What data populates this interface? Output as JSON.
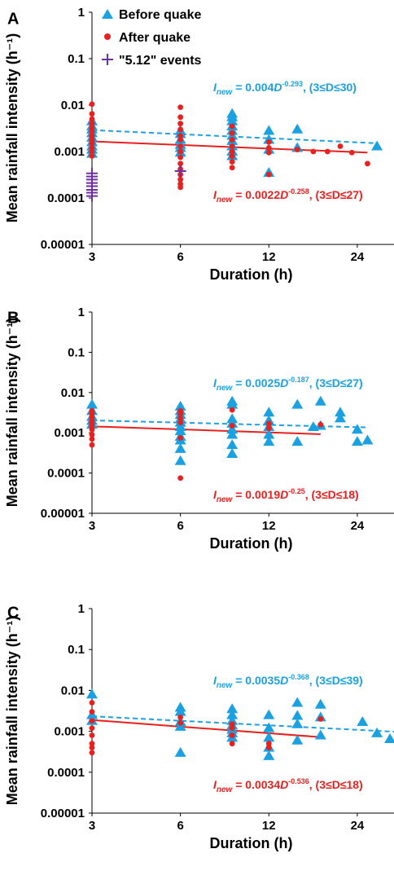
{
  "colors": {
    "before": "#1ba1e2",
    "after": "#e8201e",
    "events512": "#7030a0",
    "axis": "#000000"
  },
  "legend": {
    "before": "Before quake",
    "after": "After quake",
    "events": "\"5.12\" events",
    "placement": "top-left (panel A only)"
  },
  "chart_data": [
    {
      "panel": "A",
      "type": "scatter",
      "x_scale": "log",
      "y_scale": "log",
      "xlabel": "Duration (h)",
      "ylabel": "Mean rainfall intensity (h⁻¹)",
      "x_ticks": [
        3,
        6,
        12,
        24
      ],
      "y_ticks": [
        "1",
        "0.1",
        "0.01",
        "0.001",
        "0.0001",
        "0.00001"
      ],
      "xlim": [
        3,
        32
      ],
      "ylim": [
        1e-05,
        1
      ],
      "grid": false,
      "series": [
        {
          "name": "Before quake",
          "marker": "triangle",
          "points": [
            [
              3,
              0.0045
            ],
            [
              3,
              0.0035
            ],
            [
              3,
              0.003
            ],
            [
              3,
              0.0025
            ],
            [
              3,
              0.002
            ],
            [
              3,
              0.0016
            ],
            [
              3,
              0.0013
            ],
            [
              3,
              0.0011
            ],
            [
              3,
              0.0009
            ],
            [
              6,
              0.0028
            ],
            [
              6,
              0.0024
            ],
            [
              6,
              0.0018
            ],
            [
              6,
              0.0014
            ],
            [
              6,
              0.0012
            ],
            [
              6,
              0.00095
            ],
            [
              9,
              0.0065
            ],
            [
              9,
              0.0055
            ],
            [
              9,
              0.0045
            ],
            [
              9,
              0.0035
            ],
            [
              9,
              0.0028
            ],
            [
              9,
              0.0022
            ],
            [
              9,
              0.0017
            ],
            [
              9,
              0.0013
            ],
            [
              9,
              0.001
            ],
            [
              9,
              0.0008
            ],
            [
              12,
              0.0028
            ],
            [
              12,
              0.0018
            ],
            [
              12,
              0.0011
            ],
            [
              12,
              0.00035
            ],
            [
              15,
              0.003
            ],
            [
              15,
              0.0012
            ],
            [
              28,
              0.0013
            ]
          ]
        },
        {
          "name": "After quake",
          "marker": "circle",
          "points": [
            [
              3,
              0.0105
            ],
            [
              3,
              0.0065
            ],
            [
              3,
              0.005
            ],
            [
              3,
              0.004
            ],
            [
              3,
              0.0032
            ],
            [
              3,
              0.0027
            ],
            [
              3,
              0.0022
            ],
            [
              3,
              0.0018
            ],
            [
              3,
              0.0015
            ],
            [
              3,
              0.0012
            ],
            [
              3,
              0.001
            ],
            [
              3,
              0.0008
            ],
            [
              6,
              0.009
            ],
            [
              6,
              0.0055
            ],
            [
              6,
              0.004
            ],
            [
              6,
              0.003
            ],
            [
              6,
              0.0022
            ],
            [
              6,
              0.0018
            ],
            [
              6,
              0.0013
            ],
            [
              6,
              0.001
            ],
            [
              6,
              0.00075
            ],
            [
              6,
              0.00055
            ],
            [
              6,
              0.00042
            ],
            [
              6,
              0.00032
            ],
            [
              6,
              0.00025
            ],
            [
              6,
              0.0002
            ],
            [
              6,
              0.00017
            ],
            [
              9,
              0.0035
            ],
            [
              9,
              0.0025
            ],
            [
              9,
              0.0018
            ],
            [
              9,
              0.0013
            ],
            [
              9,
              0.001
            ],
            [
              9,
              0.0008
            ],
            [
              9,
              0.0006
            ],
            [
              9,
              0.00045
            ],
            [
              12,
              0.0016
            ],
            [
              12,
              0.0012
            ],
            [
              12,
              0.00095
            ],
            [
              12,
              0.00032
            ],
            [
              15,
              0.0011
            ],
            [
              17,
              0.001
            ],
            [
              19,
              0.001
            ],
            [
              21,
              0.0013
            ],
            [
              23,
              0.00095
            ],
            [
              26,
              0.00055
            ]
          ]
        },
        {
          "name": "\"5.12\" events",
          "marker": "cross",
          "points": [
            [
              3,
              0.00034
            ],
            [
              3,
              0.00029
            ],
            [
              3,
              0.00025
            ],
            [
              3,
              0.00021
            ],
            [
              3,
              0.00018
            ],
            [
              3,
              0.00015
            ],
            [
              3,
              0.00013
            ],
            [
              3,
              0.00011
            ],
            [
              6,
              0.00038
            ]
          ]
        }
      ],
      "fits": [
        {
          "series": "Before quake",
          "a": 0.004,
          "b": -0.293,
          "x_range": [
            3,
            28
          ],
          "style": "dashed",
          "label_coef": "0.004",
          "label_exp": "-0.293",
          "label_range": ", (3≤D≤30)"
        },
        {
          "series": "After quake",
          "a": 0.0022,
          "b": -0.258,
          "x_range": [
            3,
            26
          ],
          "style": "solid",
          "label_coef": "0.0022",
          "label_exp": "-0.258",
          "label_range": ", (3≤D≤27)"
        }
      ]
    },
    {
      "panel": "B",
      "type": "scatter",
      "x_scale": "log",
      "y_scale": "log",
      "xlabel": "Duration (h)",
      "ylabel": "Mean rainfall intensity (h⁻¹)",
      "x_ticks": [
        3,
        6,
        12,
        24
      ],
      "y_ticks": [
        "1",
        "0.1",
        "0.01",
        "0.001",
        "0.0001",
        "0.00001"
      ],
      "xlim": [
        3,
        32
      ],
      "ylim": [
        1e-05,
        1
      ],
      "grid": false,
      "series": [
        {
          "name": "Before quake",
          "marker": "triangle",
          "points": [
            [
              3,
              0.005
            ],
            [
              3,
              0.0035
            ],
            [
              3,
              0.0025
            ],
            [
              3,
              0.002
            ],
            [
              3,
              0.0016
            ],
            [
              6,
              0.0045
            ],
            [
              6,
              0.0035
            ],
            [
              6,
              0.0028
            ],
            [
              6,
              0.0022
            ],
            [
              6,
              0.0018
            ],
            [
              6,
              0.0014
            ],
            [
              6,
              0.0011
            ],
            [
              6,
              0.0008
            ],
            [
              6,
              0.00065
            ],
            [
              6,
              0.0004
            ],
            [
              6,
              0.0002
            ],
            [
              9,
              0.006
            ],
            [
              9,
              0.005
            ],
            [
              9,
              0.0022
            ],
            [
              9,
              0.0017
            ],
            [
              9,
              0.0012
            ],
            [
              9,
              0.0009
            ],
            [
              9,
              0.0005
            ],
            [
              9,
              0.0003
            ],
            [
              12,
              0.0032
            ],
            [
              12,
              0.002
            ],
            [
              12,
              0.0014
            ],
            [
              12,
              0.0009
            ],
            [
              12,
              0.0006
            ],
            [
              15,
              0.005
            ],
            [
              15,
              0.0006
            ],
            [
              17,
              0.0014
            ],
            [
              18,
              0.006
            ],
            [
              18,
              0.0015
            ],
            [
              21,
              0.0032
            ],
            [
              21,
              0.0023
            ],
            [
              24,
              0.0012
            ],
            [
              24,
              0.0006
            ],
            [
              26,
              0.00065
            ]
          ]
        },
        {
          "name": "After quake",
          "marker": "circle",
          "points": [
            [
              3,
              0.0035
            ],
            [
              3,
              0.003
            ],
            [
              3,
              0.0025
            ],
            [
              3,
              0.002
            ],
            [
              3,
              0.0017
            ],
            [
              3,
              0.0014
            ],
            [
              3,
              0.0012
            ],
            [
              3,
              0.0009
            ],
            [
              3,
              0.0007
            ],
            [
              3,
              0.0005
            ],
            [
              6,
              0.0035
            ],
            [
              6,
              0.003
            ],
            [
              6,
              0.0023
            ],
            [
              6,
              0.0018
            ],
            [
              6,
              0.00075
            ],
            [
              6,
              7.5e-05
            ],
            [
              9,
              0.0037
            ],
            [
              9,
              0.0015
            ],
            [
              12,
              0.0017
            ],
            [
              12,
              0.0013
            ],
            [
              18,
              0.0016
            ]
          ]
        }
      ],
      "fits": [
        {
          "series": "Before quake",
          "a": 0.0025,
          "b": -0.187,
          "x_range": [
            3,
            26
          ],
          "style": "dashed",
          "label_coef": "0.0025",
          "label_exp": "-0.187",
          "label_range": ", (3≤D≤27)"
        },
        {
          "series": "After quake",
          "a": 0.0019,
          "b": -0.25,
          "x_range": [
            3,
            18
          ],
          "style": "solid",
          "label_coef": "0.0019",
          "label_exp": "-0.25",
          "label_range": ", (3≤D≤18)"
        }
      ]
    },
    {
      "panel": "C",
      "type": "scatter",
      "x_scale": "log",
      "y_scale": "log",
      "xlabel": "Duration (h)",
      "ylabel": "Mean rainfall intensity (h⁻¹)",
      "x_ticks": [
        3,
        6,
        12,
        24
      ],
      "y_ticks": [
        "1",
        "0.1",
        "0.01",
        "0.001",
        "0.0001",
        "0.00001"
      ],
      "xlim": [
        3,
        32
      ],
      "ylim": [
        1e-05,
        1
      ],
      "grid": false,
      "series": [
        {
          "name": "Before quake",
          "marker": "triangle",
          "points": [
            [
              3,
              0.008
            ],
            [
              3,
              0.0025
            ],
            [
              3,
              0.0018
            ],
            [
              6,
              0.0038
            ],
            [
              6,
              0.003
            ],
            [
              6,
              0.0017
            ],
            [
              6,
              0.0013
            ],
            [
              6,
              0.0003
            ],
            [
              9,
              0.0035
            ],
            [
              9,
              0.0025
            ],
            [
              9,
              0.0018
            ],
            [
              9,
              0.0014
            ],
            [
              9,
              0.0011
            ],
            [
              9,
              0.0009
            ],
            [
              9,
              0.0007
            ],
            [
              12,
              0.0025
            ],
            [
              12,
              0.0012
            ],
            [
              12,
              0.0007
            ],
            [
              12,
              0.0004
            ],
            [
              12,
              0.00025
            ],
            [
              15,
              0.005
            ],
            [
              15,
              0.0024
            ],
            [
              15,
              0.0015
            ],
            [
              15,
              0.0006
            ],
            [
              18,
              0.0045
            ],
            [
              18,
              0.0022
            ],
            [
              18,
              0.0008
            ],
            [
              25,
              0.0017
            ],
            [
              28,
              0.0009
            ],
            [
              31,
              0.00065
            ]
          ]
        },
        {
          "name": "After quake",
          "marker": "circle",
          "points": [
            [
              3,
              0.005
            ],
            [
              3,
              0.003
            ],
            [
              3,
              0.0018
            ],
            [
              3,
              0.0012
            ],
            [
              3,
              0.0008
            ],
            [
              3,
              0.0005
            ],
            [
              3,
              0.0004
            ],
            [
              3,
              0.0003
            ],
            [
              6,
              0.0022
            ],
            [
              6,
              0.0016
            ],
            [
              9,
              0.0015
            ],
            [
              9,
              0.0012
            ],
            [
              9,
              0.0008
            ],
            [
              9,
              0.0005
            ],
            [
              12,
              0.0005
            ],
            [
              12,
              0.0004
            ],
            [
              18,
              0.002
            ]
          ]
        }
      ],
      "fits": [
        {
          "series": "Before quake",
          "a": 0.0035,
          "b": -0.368,
          "x_range": [
            3,
            32
          ],
          "style": "dashed",
          "label_coef": "0.0035",
          "label_exp": "-0.368",
          "label_range": ", (3≤D≤39)"
        },
        {
          "series": "After quake",
          "a": 0.0034,
          "b": -0.536,
          "x_range": [
            3,
            18
          ],
          "style": "solid",
          "label_coef": "0.0034",
          "label_exp": "-0.536",
          "label_range": ", (3≤D≤18)"
        }
      ]
    }
  ]
}
